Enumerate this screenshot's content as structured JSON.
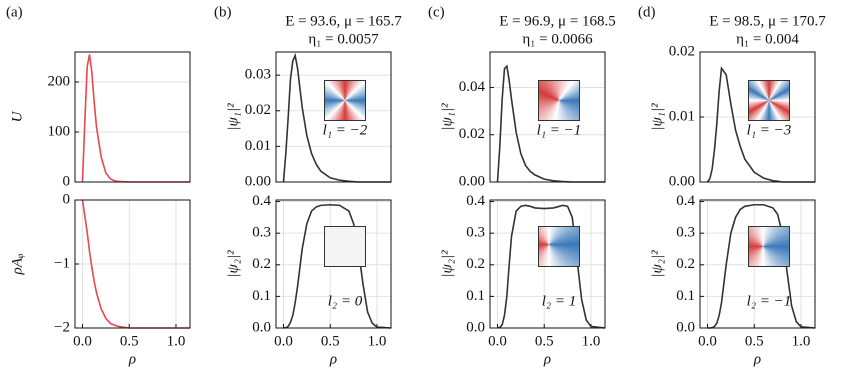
{
  "chart_data": [
    {
      "type": "line",
      "panel_label": "(a)",
      "ylabel": "U",
      "color": "#e8474f",
      "x": [
        0,
        0.025,
        0.05,
        0.075,
        0.1,
        0.125,
        0.15,
        0.2,
        0.25,
        0.3,
        0.35,
        0.4,
        0.5,
        0.6,
        0.7,
        0.75,
        0.8,
        0.85,
        0.9,
        0.95,
        1.0,
        1.15
      ],
      "values": [
        0,
        120,
        230,
        255,
        220,
        160,
        110,
        50,
        18,
        6,
        2,
        1,
        0,
        0,
        0,
        0,
        0,
        0,
        0,
        0,
        0,
        0
      ],
      "xlim": [
        -0.08,
        1.15
      ],
      "ylim": [
        0,
        260
      ],
      "yticks": [
        0,
        100,
        200
      ],
      "grid": true
    },
    {
      "type": "line",
      "ylabel": "ρAᵩ",
      "xlabel": "ρ",
      "color": "#e8474f",
      "x": [
        0,
        0.025,
        0.05,
        0.075,
        0.1,
        0.125,
        0.15,
        0.2,
        0.25,
        0.3,
        0.35,
        0.4,
        0.5,
        0.6,
        0.7,
        0.75,
        0.8,
        0.85,
        0.9,
        0.95,
        1.0,
        1.15
      ],
      "values": [
        0,
        -0.25,
        -0.5,
        -0.8,
        -1.05,
        -1.27,
        -1.45,
        -1.7,
        -1.85,
        -1.93,
        -1.96,
        -1.98,
        -2,
        -2,
        -2,
        -2,
        -2,
        -2,
        -2,
        -2,
        -2,
        -2
      ],
      "xlim": [
        -0.08,
        1.15
      ],
      "ylim": [
        -2,
        0
      ],
      "yticks": [
        {
          "value": -2,
          "label": "−2"
        },
        {
          "value": -1,
          "label": "−1"
        },
        0
      ],
      "xticks": [
        {
          "value": 0,
          "label": "0.0"
        },
        {
          "value": 0.5,
          "label": "0.5"
        },
        {
          "value": 1,
          "label": "1.0"
        }
      ],
      "grid": true
    },
    {
      "type": "line",
      "panel_label": "(b)",
      "title": "E = 93.6, μ = 165.7",
      "subtitle": "η₁ = 0.0057",
      "ylabel": "|ψ₁|²",
      "inset_label": "l₁ = −2",
      "color": "#333333",
      "x": [
        0,
        0.025,
        0.05,
        0.075,
        0.1,
        0.125,
        0.15,
        0.2,
        0.25,
        0.3,
        0.35,
        0.4,
        0.5,
        0.6,
        0.7,
        0.75,
        0.8,
        0.85,
        0.9,
        0.95,
        1.0,
        1.15
      ],
      "values": [
        0,
        0.008,
        0.018,
        0.029,
        0.034,
        0.0355,
        0.032,
        0.021,
        0.013,
        0.008,
        0.005,
        0.003,
        0.0012,
        0.0005,
        0.0002,
        0.0001,
        0,
        0,
        0,
        0,
        0,
        0
      ],
      "xlim": [
        -0.08,
        1.15
      ],
      "ylim": [
        0,
        0.0365
      ],
      "yticks": [
        {
          "value": 0,
          "label": "0.00"
        },
        0.01,
        0.02,
        0.03
      ],
      "grid": true
    },
    {
      "type": "line",
      "ylabel": "|ψ₂|²",
      "xlabel": "ρ",
      "inset_label": "l₂ = 0",
      "color": "#333333",
      "x": [
        0,
        0.025,
        0.05,
        0.075,
        0.1,
        0.125,
        0.15,
        0.2,
        0.25,
        0.3,
        0.35,
        0.4,
        0.5,
        0.6,
        0.7,
        0.75,
        0.8,
        0.85,
        0.9,
        0.95,
        1.0,
        1.15
      ],
      "values": [
        0,
        0.001,
        0.005,
        0.018,
        0.04,
        0.08,
        0.13,
        0.25,
        0.33,
        0.37,
        0.383,
        0.388,
        0.39,
        0.388,
        0.37,
        0.33,
        0.25,
        0.14,
        0.05,
        0.015,
        0.003,
        0
      ],
      "xlim": [
        -0.08,
        1.15
      ],
      "ylim": [
        0,
        0.405
      ],
      "yticks": [
        {
          "value": 0,
          "label": "0.0"
        },
        0.1,
        0.2,
        0.3,
        0.4
      ],
      "xticks": [
        {
          "value": 0,
          "label": "0.0"
        },
        {
          "value": 0.5,
          "label": "0.5"
        },
        {
          "value": 1,
          "label": "1.0"
        }
      ],
      "grid": true
    },
    {
      "type": "line",
      "panel_label": "(c)",
      "title": "E = 96.9, μ = 168.5",
      "subtitle": "η₁ = 0.0066",
      "ylabel": "|ψ₁|²",
      "inset_label": "l₁ = −1",
      "color": "#333333",
      "x": [
        0,
        0.025,
        0.05,
        0.075,
        0.1,
        0.125,
        0.15,
        0.2,
        0.25,
        0.3,
        0.35,
        0.4,
        0.5,
        0.6,
        0.7,
        0.75,
        0.8,
        0.85,
        0.9,
        0.95,
        1.0,
        1.15
      ],
      "values": [
        0,
        0.015,
        0.035,
        0.048,
        0.049,
        0.043,
        0.035,
        0.021,
        0.012,
        0.007,
        0.0045,
        0.003,
        0.0012,
        0.0005,
        0.0002,
        0.0001,
        0,
        0,
        0,
        0,
        0,
        0
      ],
      "xlim": [
        -0.08,
        1.15
      ],
      "ylim": [
        0,
        0.055
      ],
      "yticks": [
        {
          "value": 0,
          "label": "0.00"
        },
        {
          "value": 0.02,
          "label": "0.02"
        },
        {
          "value": 0.04,
          "label": "0.04"
        }
      ],
      "grid": true
    },
    {
      "type": "line",
      "ylabel": "|ψ₂|²",
      "xlabel": "ρ",
      "inset_label": "l₂ = 1",
      "color": "#333333",
      "x": [
        0,
        0.025,
        0.05,
        0.075,
        0.1,
        0.125,
        0.15,
        0.2,
        0.25,
        0.3,
        0.35,
        0.4,
        0.5,
        0.6,
        0.7,
        0.75,
        0.8,
        0.85,
        0.9,
        0.95,
        1.0,
        1.15
      ],
      "values": [
        0,
        0.002,
        0.01,
        0.04,
        0.1,
        0.2,
        0.29,
        0.37,
        0.385,
        0.388,
        0.385,
        0.38,
        0.378,
        0.38,
        0.388,
        0.385,
        0.35,
        0.22,
        0.09,
        0.025,
        0.005,
        0
      ],
      "xlim": [
        -0.08,
        1.15
      ],
      "ylim": [
        0,
        0.405
      ],
      "yticks": [
        {
          "value": 0,
          "label": "0.0"
        },
        0.1,
        0.2,
        0.3,
        0.4
      ],
      "xticks": [
        {
          "value": 0,
          "label": "0.0"
        },
        {
          "value": 0.5,
          "label": "0.5"
        },
        {
          "value": 1,
          "label": "1.0"
        }
      ],
      "grid": true
    },
    {
      "type": "line",
      "panel_label": "(d)",
      "title": "E = 98.5, μ = 170.7",
      "subtitle": "η₁ = 0.004",
      "ylabel": "|ψ₁|²",
      "inset_label": "l₁ = −3",
      "color": "#333333",
      "x": [
        0,
        0.025,
        0.05,
        0.075,
        0.1,
        0.125,
        0.15,
        0.2,
        0.25,
        0.3,
        0.35,
        0.4,
        0.5,
        0.6,
        0.7,
        0.75,
        0.8,
        0.85,
        0.9,
        0.95,
        1.0,
        1.15
      ],
      "values": [
        0,
        0.0005,
        0.002,
        0.005,
        0.009,
        0.014,
        0.0175,
        0.0165,
        0.012,
        0.008,
        0.0055,
        0.0035,
        0.0015,
        0.0006,
        0.0002,
        0.0001,
        0,
        0,
        0,
        0,
        0,
        0
      ],
      "xlim": [
        -0.08,
        1.15
      ],
      "ylim": [
        0,
        0.02
      ],
      "yticks": [
        {
          "value": 0,
          "label": "0.00"
        },
        0.01,
        0.02
      ],
      "grid": true
    },
    {
      "type": "line",
      "ylabel": "|ψ₂|²",
      "xlabel": "ρ",
      "inset_label": "l₂ = −1",
      "color": "#333333",
      "x": [
        0,
        0.025,
        0.05,
        0.075,
        0.1,
        0.125,
        0.15,
        0.2,
        0.25,
        0.3,
        0.35,
        0.4,
        0.5,
        0.6,
        0.7,
        0.75,
        0.8,
        0.85,
        0.9,
        0.95,
        1.0,
        1.15
      ],
      "values": [
        0,
        0,
        0.001,
        0.005,
        0.015,
        0.04,
        0.08,
        0.2,
        0.3,
        0.35,
        0.375,
        0.385,
        0.39,
        0.39,
        0.38,
        0.36,
        0.3,
        0.18,
        0.07,
        0.02,
        0.004,
        0
      ],
      "xlim": [
        -0.08,
        1.15
      ],
      "ylim": [
        0,
        0.405
      ],
      "yticks": [
        {
          "value": 0,
          "label": "0.0"
        },
        0.1,
        0.2,
        0.3,
        0.4
      ],
      "xticks": [
        {
          "value": 0,
          "label": "0.0"
        },
        {
          "value": 0.5,
          "label": "0.5"
        },
        {
          "value": 1,
          "label": "1.0"
        }
      ],
      "grid": true
    }
  ]
}
